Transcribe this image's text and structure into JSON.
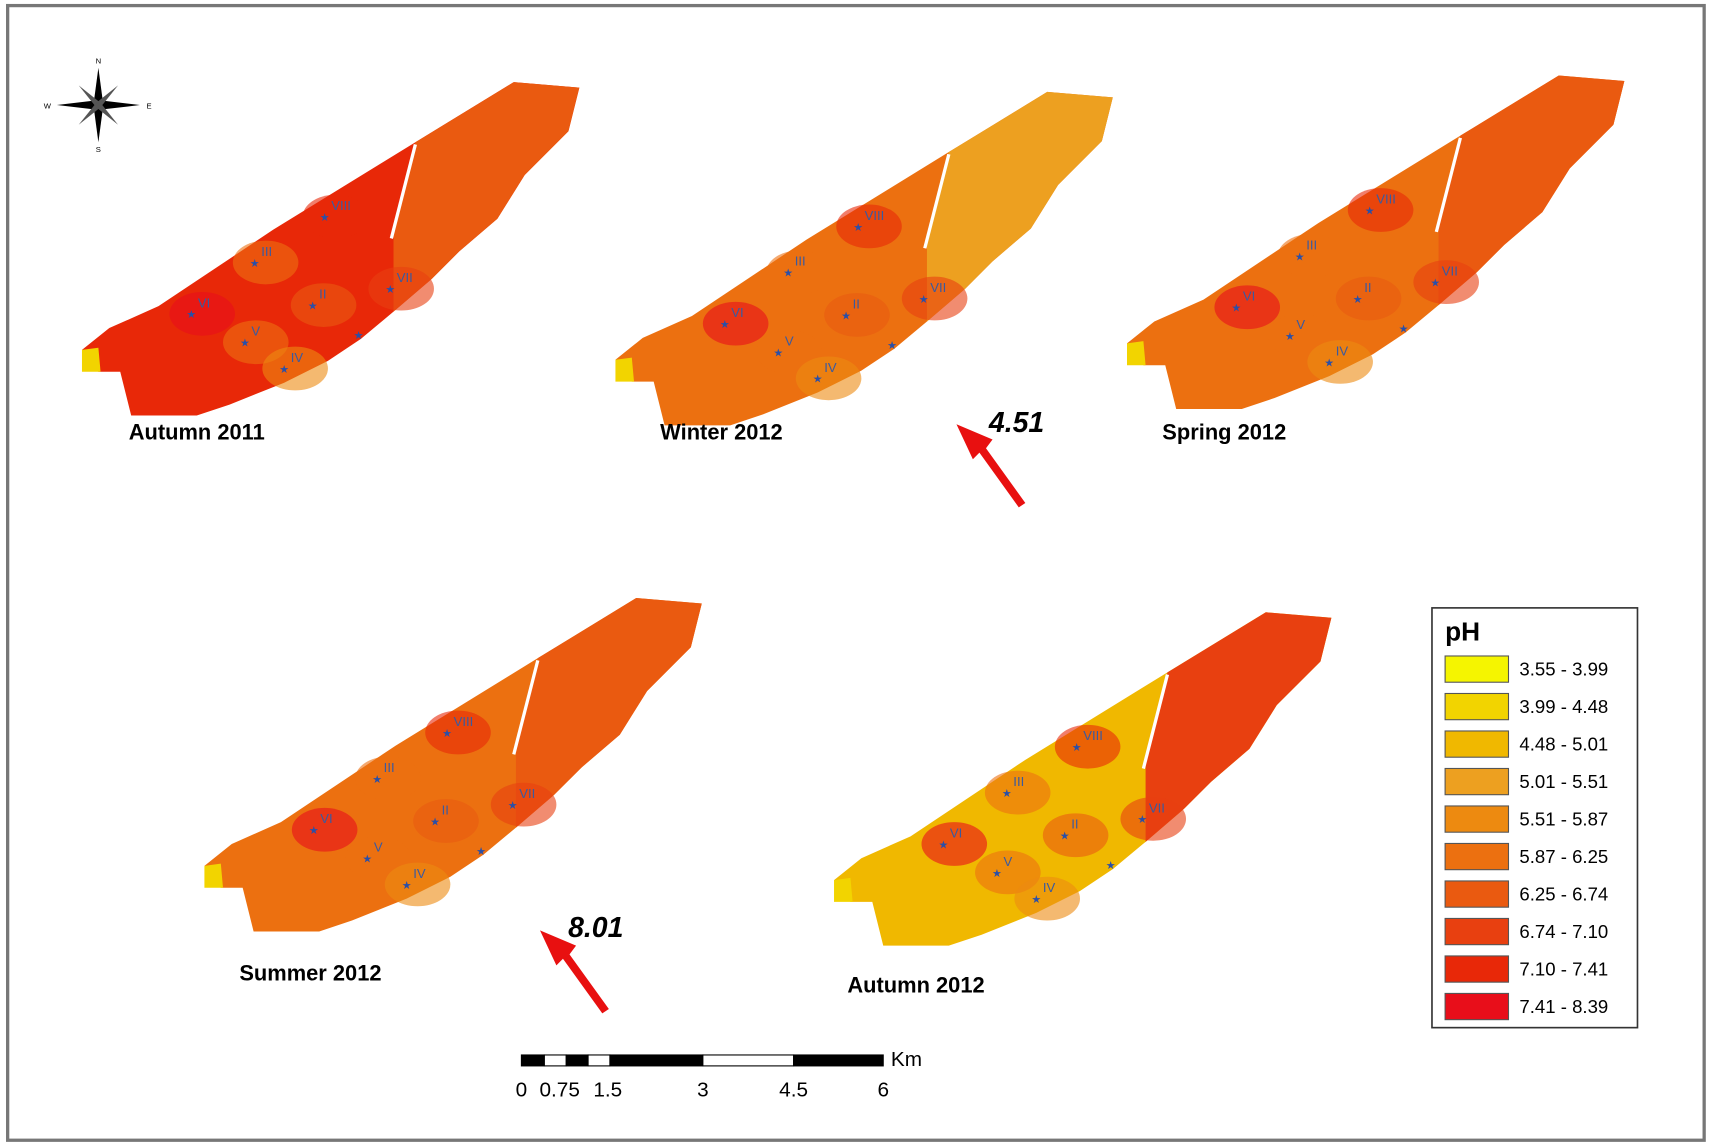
{
  "compass": {
    "n": "N",
    "s": "S",
    "e": "E",
    "w": "W"
  },
  "maps": [
    {
      "title": "Autumn 2011",
      "stations": [
        "VIII",
        "III",
        "VII",
        "VI",
        "II",
        "V",
        "IV"
      ]
    },
    {
      "title": "Winter 2012",
      "stations": [
        "VIII",
        "III",
        "VII",
        "VI",
        "II",
        "V",
        "IV"
      ]
    },
    {
      "title": "Spring 2012",
      "stations": [
        "VIII",
        "III",
        "VII",
        "VI",
        "II",
        "V",
        "IV"
      ]
    },
    {
      "title": "Summer 2012",
      "stations": [
        "VIII",
        "III",
        "VII",
        "VI",
        "II",
        "V",
        "IV"
      ]
    },
    {
      "title": "Autumn 2012",
      "stations": [
        "VIII",
        "III",
        "VII",
        "VI",
        "II",
        "V",
        "IV"
      ]
    }
  ],
  "annotations": [
    "4.51",
    "8.01"
  ],
  "legend": {
    "title": "pH",
    "classes": [
      {
        "label": "3.55 - 3.99",
        "color": "#f5f500"
      },
      {
        "label": "3.99 - 4.48",
        "color": "#f2d400"
      },
      {
        "label": "4.48 - 5.01",
        "color": "#f0b800"
      },
      {
        "label": "5.01 - 5.51",
        "color": "#eda020"
      },
      {
        "label": "5.51 - 5.87",
        "color": "#ed8a10"
      },
      {
        "label": "5.87 - 6.25",
        "color": "#ec7010"
      },
      {
        "label": "6.25 - 6.74",
        "color": "#ea5a10"
      },
      {
        "label": "6.74 - 7.10",
        "color": "#e84010"
      },
      {
        "label": "7.10 - 7.41",
        "color": "#e82808"
      },
      {
        "label": "7.41 - 8.39",
        "color": "#e80e1a"
      }
    ]
  },
  "scale_bar": {
    "labels": [
      "0",
      "0.75",
      "1.5",
      "3",
      "4.5",
      "6"
    ],
    "unit": "Km"
  }
}
